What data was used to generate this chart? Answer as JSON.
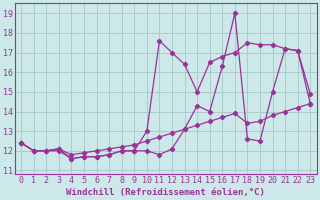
{
  "line1_x": [
    0,
    1,
    2,
    3,
    4,
    5,
    6,
    7,
    8,
    9,
    10,
    11,
    12,
    13,
    14,
    15,
    16,
    17,
    18,
    19,
    20,
    21,
    22,
    23
  ],
  "line1_y": [
    12.4,
    12.0,
    12.0,
    12.0,
    11.6,
    11.7,
    11.7,
    11.8,
    12.0,
    12.0,
    12.0,
    11.8,
    12.1,
    13.1,
    14.3,
    14.0,
    16.3,
    19.0,
    12.6,
    12.5,
    15.0,
    17.2,
    17.1,
    14.9
  ],
  "line2_x": [
    0,
    1,
    2,
    3,
    4,
    5,
    6,
    7,
    8,
    9,
    10,
    11,
    12,
    13,
    14,
    15,
    16,
    17,
    18,
    19,
    20,
    21,
    22,
    23
  ],
  "line2_y": [
    12.4,
    12.0,
    12.0,
    12.1,
    11.6,
    11.7,
    11.7,
    11.8,
    12.0,
    12.0,
    13.0,
    17.6,
    17.0,
    16.4,
    15.0,
    16.5,
    16.8,
    17.0,
    17.5,
    17.4,
    17.4,
    17.2,
    17.1,
    14.4
  ],
  "line3_x": [
    0,
    1,
    2,
    3,
    4,
    5,
    6,
    7,
    8,
    9,
    10,
    11,
    12,
    13,
    14,
    15,
    16,
    17,
    18,
    19,
    20,
    21,
    22,
    23
  ],
  "line3_y": [
    12.4,
    12.0,
    12.0,
    12.1,
    11.8,
    11.9,
    12.0,
    12.1,
    12.2,
    12.3,
    12.5,
    12.7,
    12.9,
    13.1,
    13.3,
    13.5,
    13.7,
    13.9,
    13.4,
    13.5,
    13.8,
    14.0,
    14.2,
    14.4
  ],
  "bg_color": "#cce8e8",
  "line_color": "#993399",
  "grid_color": "#aacccc",
  "xlabel": "Windchill (Refroidissement éolien,°C)",
  "xlim": [
    -0.5,
    23.5
  ],
  "ylim": [
    10.8,
    19.5
  ],
  "xticks": [
    0,
    1,
    2,
    3,
    4,
    5,
    6,
    7,
    8,
    9,
    10,
    11,
    12,
    13,
    14,
    15,
    16,
    17,
    18,
    19,
    20,
    21,
    22,
    23
  ],
  "yticks": [
    11,
    12,
    13,
    14,
    15,
    16,
    17,
    18,
    19
  ],
  "marker": "D",
  "markersize": 2.2,
  "linewidth": 0.9,
  "xlabel_fontsize": 6.5,
  "tick_fontsize": 6.0
}
